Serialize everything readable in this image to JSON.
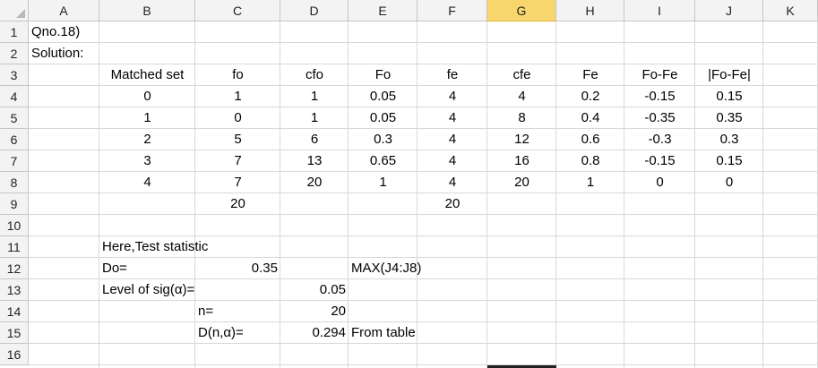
{
  "columns": [
    "A",
    "B",
    "C",
    "D",
    "E",
    "F",
    "G",
    "H",
    "I",
    "J",
    "K"
  ],
  "selected_column": "G",
  "rows": [
    "1",
    "2",
    "3",
    "4",
    "5",
    "6",
    "7",
    "8",
    "9",
    "10",
    "11",
    "12",
    "13",
    "14",
    "15",
    "16"
  ],
  "title": {
    "question": "Qno.18)",
    "solution": "Solution:"
  },
  "table": {
    "headers": [
      "Matched set",
      "fo",
      "cfo",
      "Fo",
      "fe",
      "cfe",
      "Fe",
      "Fo-Fe",
      "|Fo-Fe|"
    ],
    "rows": [
      [
        "0",
        "1",
        "1",
        "0.05",
        "4",
        "4",
        "0.2",
        "-0.15",
        "0.15"
      ],
      [
        "1",
        "0",
        "1",
        "0.05",
        "4",
        "8",
        "0.4",
        "-0.35",
        "0.35"
      ],
      [
        "2",
        "5",
        "6",
        "0.3",
        "4",
        "12",
        "0.6",
        "-0.3",
        "0.3"
      ],
      [
        "3",
        "7",
        "13",
        "0.65",
        "4",
        "16",
        "0.8",
        "-0.15",
        "0.15"
      ],
      [
        "4",
        "7",
        "20",
        "1",
        "4",
        "20",
        "1",
        "0",
        "0"
      ]
    ],
    "totals": {
      "fo": "20",
      "fe": "20"
    }
  },
  "stats": {
    "heading": "Here,Test statistic",
    "do_label": "Do=",
    "do_value": "0.35",
    "do_formula": "MAX(J4:J8)",
    "sig_label": "Level of sig(α)=",
    "sig_value": "0.05",
    "n_label": "n=",
    "n_value": "20",
    "d_label": "D(n,α)=",
    "d_value": "0.294",
    "d_note": "From table"
  }
}
